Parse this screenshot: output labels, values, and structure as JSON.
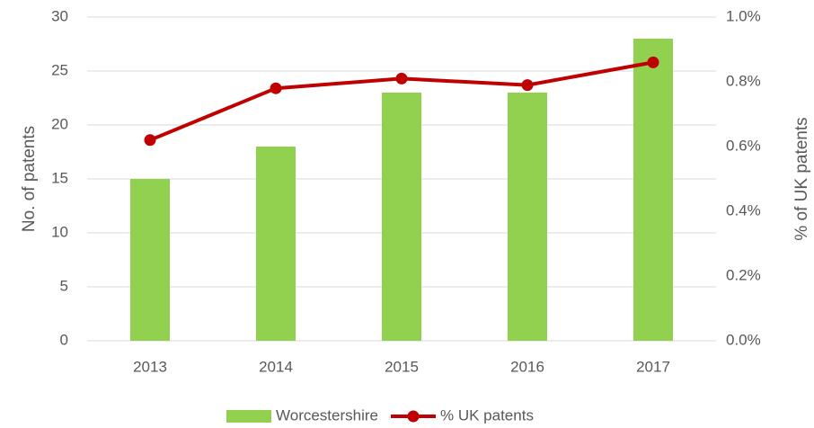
{
  "chart_data": {
    "type": "bar",
    "categories": [
      "2013",
      "2014",
      "2015",
      "2016",
      "2017"
    ],
    "series": [
      {
        "name": "Worcestershire",
        "type": "bar",
        "color": "#92d050",
        "values": [
          15,
          18,
          23,
          23,
          28
        ]
      },
      {
        "name": "% UK patents",
        "type": "line",
        "axis": "y2",
        "color": "#c00000",
        "values": [
          0.62,
          0.78,
          0.81,
          0.79,
          0.86
        ]
      }
    ],
    "ylabel": "No. of patents",
    "y2label": "% of UK patents",
    "ylim": [
      0,
      30
    ],
    "yticks": [
      0,
      5,
      10,
      15,
      20,
      25,
      30
    ],
    "y2lim": [
      0,
      1
    ],
    "y2ticks": [
      {
        "value": 0,
        "label": "0.0%"
      },
      {
        "value": 0.2,
        "label": "0.2%"
      },
      {
        "value": 0.4,
        "label": "0.4%"
      },
      {
        "value": 0.6,
        "label": "0.6%"
      },
      {
        "value": 0.8,
        "label": "0.8%"
      },
      {
        "value": 1,
        "label": "1.0%"
      }
    ],
    "grid": true,
    "legend": "bottom"
  }
}
